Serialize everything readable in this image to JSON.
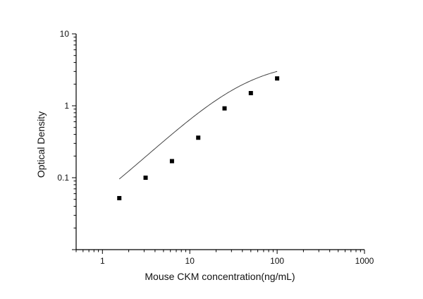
{
  "chart_data": {
    "type": "scatter",
    "title": "",
    "xlabel": "Mouse CKM concentration(ng/mL)",
    "ylabel": "Optical Density",
    "x_scale": "log",
    "y_scale": "log",
    "xlim": [
      0.5,
      1000
    ],
    "ylim": [
      0.01,
      10
    ],
    "x_ticks": [
      {
        "value": 1,
        "label": "1"
      },
      {
        "value": 10,
        "label": "10"
      },
      {
        "value": 100,
        "label": "100"
      },
      {
        "value": 1000,
        "label": "1000"
      }
    ],
    "y_ticks": [
      {
        "value": 0.1,
        "label": "0.1"
      },
      {
        "value": 1,
        "label": "1"
      },
      {
        "value": 10,
        "label": "10"
      }
    ],
    "grid": false,
    "points": {
      "x": [
        1.56,
        3.12,
        6.25,
        12.5,
        25,
        50,
        100
      ],
      "y": [
        0.052,
        0.1,
        0.17,
        0.36,
        0.92,
        1.5,
        2.4
      ]
    },
    "fit_curve": {
      "type": "four-parameter logistic",
      "x_range": [
        1.56,
        100
      ],
      "bottom": 0.01,
      "top": 4.2,
      "ec50": 45,
      "hill": 1.15
    },
    "colors": {
      "marker": "#000000",
      "curve": "#444444",
      "axis": "#000000"
    }
  }
}
